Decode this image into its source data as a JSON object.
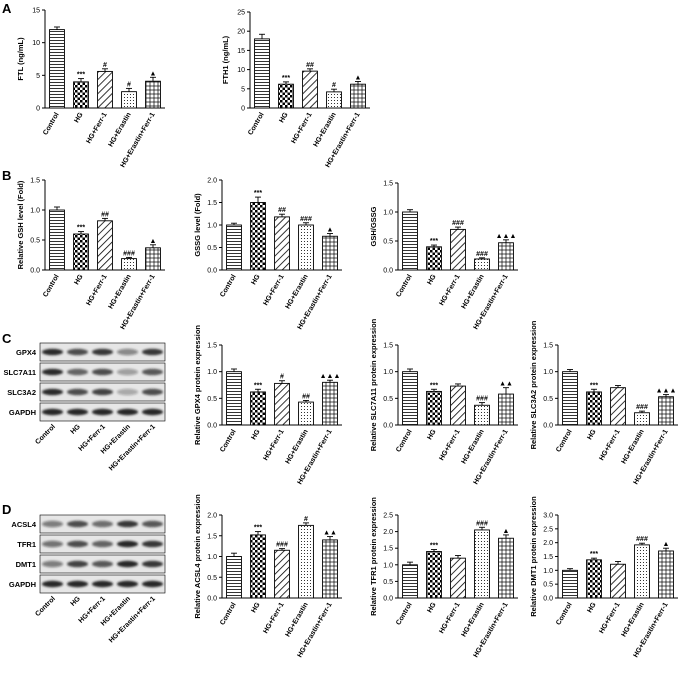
{
  "panels": {
    "A": "A",
    "B": "B",
    "C": "C",
    "D": "D"
  },
  "colors": {
    "bar_fill": "#ffffff",
    "bar_stroke": "#000000",
    "blot_bg": "#e6e6e6",
    "band": "#1a1a1a"
  },
  "chart_data": [
    {
      "id": "A1",
      "type": "bar",
      "ylabel": "FTL (ng/mL)",
      "ylim": [
        0,
        15
      ],
      "yticks": [
        0,
        5,
        10,
        15
      ],
      "categories": [
        "Control",
        "HG",
        "HG+Ferr-1",
        "HG+Erastin",
        "HG+Erastin+Ferr-1"
      ],
      "values": [
        12,
        4,
        5.6,
        2.5,
        4.1
      ],
      "errors": [
        0.4,
        0.5,
        0.4,
        0.5,
        0.6
      ],
      "annotations": [
        "",
        "***",
        "#",
        "#",
        "▲"
      ]
    },
    {
      "id": "A2",
      "type": "bar",
      "ylabel": "FTH1 (ng/mL)",
      "ylim": [
        0,
        25
      ],
      "yticks": [
        0,
        5,
        10,
        15,
        20,
        25
      ],
      "categories": [
        "Control",
        "HG",
        "HG+Ferr-1",
        "HG+Erastin",
        "HG+Erastin+Ferr-1"
      ],
      "values": [
        18,
        6.2,
        9.6,
        4.2,
        6.2
      ],
      "errors": [
        1.2,
        0.6,
        0.6,
        0.7,
        0.7
      ],
      "annotations": [
        "",
        "***",
        "##",
        "#",
        "▲"
      ]
    },
    {
      "id": "B1",
      "type": "bar",
      "ylabel": "Relative GSH level (Fold)",
      "ylim": [
        0,
        1.5
      ],
      "yticks": [
        0,
        0.5,
        1.0,
        1.5
      ],
      "categories": [
        "Control",
        "HG",
        "HG+Ferr-1",
        "HG+Erastin",
        "HG+Erastin+Ferr-1"
      ],
      "values": [
        1.0,
        0.6,
        0.82,
        0.19,
        0.37
      ],
      "errors": [
        0.05,
        0.04,
        0.04,
        0.02,
        0.05
      ],
      "annotations": [
        "",
        "***",
        "##",
        "###",
        "▲"
      ]
    },
    {
      "id": "B2",
      "type": "bar",
      "ylabel": "GSSG level (Fold)",
      "ylim": [
        0,
        2.0
      ],
      "yticks": [
        0,
        0.5,
        1.0,
        1.5,
        2.0
      ],
      "categories": [
        "Control",
        "HG",
        "HG+Ferr-1",
        "HG+Erastin",
        "HG+Erastin+Ferr-1"
      ],
      "values": [
        1.0,
        1.5,
        1.18,
        1.0,
        0.75
      ],
      "errors": [
        0.04,
        0.12,
        0.06,
        0.05,
        0.06
      ],
      "annotations": [
        "",
        "***",
        "##",
        "###",
        "▲"
      ]
    },
    {
      "id": "B3",
      "type": "bar",
      "ylabel": "GSH/GSSG",
      "ylim": [
        0,
        1.5
      ],
      "yticks": [
        0,
        0.5,
        1.0,
        1.5
      ],
      "categories": [
        "Control",
        "HG",
        "HG+Ferr-1",
        "HG+Erastin",
        "HG+Erastin+Ferr-1"
      ],
      "values": [
        1.0,
        0.4,
        0.7,
        0.19,
        0.47
      ],
      "errors": [
        0.04,
        0.03,
        0.04,
        0.02,
        0.05
      ],
      "annotations": [
        "",
        "***",
        "###",
        "###",
        "▲▲▲"
      ]
    },
    {
      "id": "C1",
      "type": "bar",
      "ylabel": "Relative GPX4 protein expression",
      "ylim": [
        0,
        1.5
      ],
      "yticks": [
        0,
        0.5,
        1.0,
        1.5
      ],
      "categories": [
        "Control",
        "HG",
        "HG+Ferr-1",
        "HG+Erastin",
        "HG+Erastin+Ferr-1"
      ],
      "values": [
        1.0,
        0.62,
        0.78,
        0.43,
        0.8
      ],
      "errors": [
        0.05,
        0.05,
        0.05,
        0.03,
        0.04
      ],
      "annotations": [
        "",
        "***",
        "#",
        "##",
        "▲▲▲"
      ]
    },
    {
      "id": "C2",
      "type": "bar",
      "ylabel": "Relative SLC7A11 protein expression",
      "ylim": [
        0,
        1.5
      ],
      "yticks": [
        0,
        0.5,
        1.0,
        1.5
      ],
      "categories": [
        "Control",
        "HG",
        "HG+Ferr-1",
        "HG+Erastin",
        "HG+Erastin+Ferr-1"
      ],
      "values": [
        1.0,
        0.63,
        0.73,
        0.37,
        0.58
      ],
      "errors": [
        0.05,
        0.04,
        0.04,
        0.05,
        0.12
      ],
      "annotations": [
        "",
        "***",
        "",
        "###",
        "▲▲"
      ]
    },
    {
      "id": "C3",
      "type": "bar",
      "ylabel": "Relative SLC3A2 protein expression",
      "ylim": [
        0,
        1.5
      ],
      "yticks": [
        0,
        0.5,
        1.0,
        1.5
      ],
      "categories": [
        "Control",
        "HG",
        "HG+Ferr-1",
        "HG+Erastin",
        "HG+Erastin+Ferr-1"
      ],
      "values": [
        1.0,
        0.62,
        0.7,
        0.23,
        0.53
      ],
      "errors": [
        0.04,
        0.05,
        0.04,
        0.03,
        0.04
      ],
      "annotations": [
        "",
        "***",
        "",
        "###",
        "▲▲▲"
      ]
    },
    {
      "id": "D1",
      "type": "bar",
      "ylabel": "Relative ACSL4 protein expression",
      "ylim": [
        0,
        2.0
      ],
      "yticks": [
        0,
        0.5,
        1.0,
        1.5,
        2.0
      ],
      "categories": [
        "Control",
        "HG",
        "HG+Ferr-1",
        "HG+Erastin",
        "HG+Erastin+Ferr-1"
      ],
      "values": [
        1.0,
        1.52,
        1.15,
        1.75,
        1.4
      ],
      "errors": [
        0.08,
        0.08,
        0.04,
        0.06,
        0.08
      ],
      "annotations": [
        "",
        "***",
        "###",
        "#",
        "▲▲"
      ]
    },
    {
      "id": "D2",
      "type": "bar",
      "ylabel": "Relative TFR1 protein expression",
      "ylim": [
        0,
        2.5
      ],
      "yticks": [
        0,
        0.5,
        1.0,
        1.5,
        2.0,
        2.5
      ],
      "categories": [
        "Control",
        "HG",
        "HG+Ferr-1",
        "HG+Erastin",
        "HG+Erastin+Ferr-1"
      ],
      "values": [
        1.0,
        1.4,
        1.2,
        2.05,
        1.8
      ],
      "errors": [
        0.08,
        0.06,
        0.08,
        0.08,
        0.1
      ],
      "annotations": [
        "",
        "***",
        "",
        "###",
        "▲"
      ]
    },
    {
      "id": "D3",
      "type": "bar",
      "ylabel": "Relative DMT1 protein expression",
      "ylim": [
        0,
        3.0
      ],
      "yticks": [
        0,
        0.5,
        1.0,
        1.5,
        2.0,
        2.5,
        3.0
      ],
      "categories": [
        "Control",
        "HG",
        "HG+Ferr-1",
        "HG+Erastin",
        "HG+Erastin+Ferr-1"
      ],
      "values": [
        1.0,
        1.38,
        1.22,
        1.92,
        1.7
      ],
      "errors": [
        0.06,
        0.06,
        0.1,
        0.06,
        0.1
      ],
      "annotations": [
        "",
        "***",
        "",
        "###",
        "▲"
      ]
    }
  ],
  "blots": [
    {
      "id": "blotC",
      "labels": [
        "GPX4",
        "SLC7A11",
        "SLC3A2",
        "GAPDH"
      ],
      "intensity": [
        [
          0.9,
          0.75,
          0.85,
          0.45,
          0.85
        ],
        [
          0.9,
          0.65,
          0.75,
          0.35,
          0.7
        ],
        [
          0.9,
          0.75,
          0.8,
          0.3,
          0.75
        ],
        [
          0.95,
          0.95,
          0.95,
          0.95,
          0.95
        ]
      ],
      "categories": [
        "Control",
        "HG",
        "HG+Ferr-1",
        "HG+Erastin",
        "HG+Erastin+Ferr-1"
      ]
    },
    {
      "id": "blotD",
      "labels": [
        "ACSL4",
        "TFR1",
        "DMT1",
        "GAPDH"
      ],
      "intensity": [
        [
          0.5,
          0.75,
          0.6,
          0.85,
          0.7
        ],
        [
          0.55,
          0.75,
          0.65,
          0.95,
          0.85
        ],
        [
          0.5,
          0.8,
          0.7,
          0.95,
          0.85
        ],
        [
          0.95,
          0.95,
          0.95,
          0.95,
          0.95
        ]
      ],
      "categories": [
        "Control",
        "HG",
        "HG+Ferr-1",
        "HG+Erastin",
        "HG+Erastin+Ferr-1"
      ]
    }
  ]
}
